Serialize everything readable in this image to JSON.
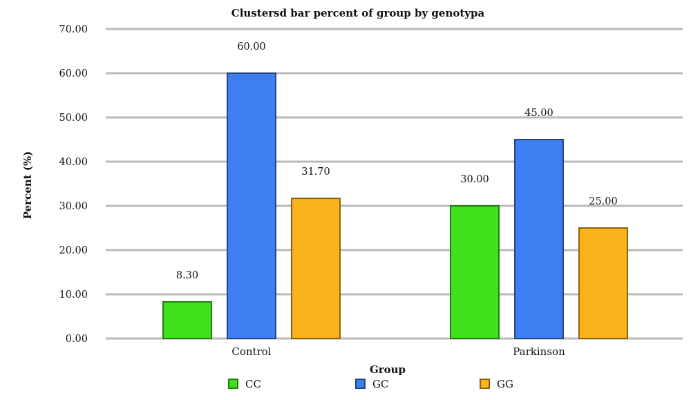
{
  "chart_data": {
    "type": "bar",
    "title": "Clustersd bar percent of group by genotypa",
    "xlabel": "Group",
    "ylabel": "Percent (%)",
    "categories": [
      "Control",
      "Parkinson"
    ],
    "ylim": [
      0,
      70
    ],
    "yticks": [
      "0.00",
      "10.00",
      "20.00",
      "30.00",
      "40.00",
      "50.00",
      "60.00",
      "70.00"
    ],
    "grid": true,
    "legend_position": "bottom",
    "series": [
      {
        "name": "CC",
        "color": "#3ee21a",
        "values": [
          8.3,
          30.0
        ],
        "labels": [
          "8.30",
          "30.00"
        ]
      },
      {
        "name": "GC",
        "color": "#3d7ff0",
        "values": [
          60.0,
          45.0
        ],
        "labels": [
          "60.00",
          "45.00"
        ]
      },
      {
        "name": "GG",
        "color": "#fbb31c",
        "values": [
          31.7,
          25.0
        ],
        "labels": [
          "31.70",
          "25.00"
        ]
      }
    ]
  }
}
